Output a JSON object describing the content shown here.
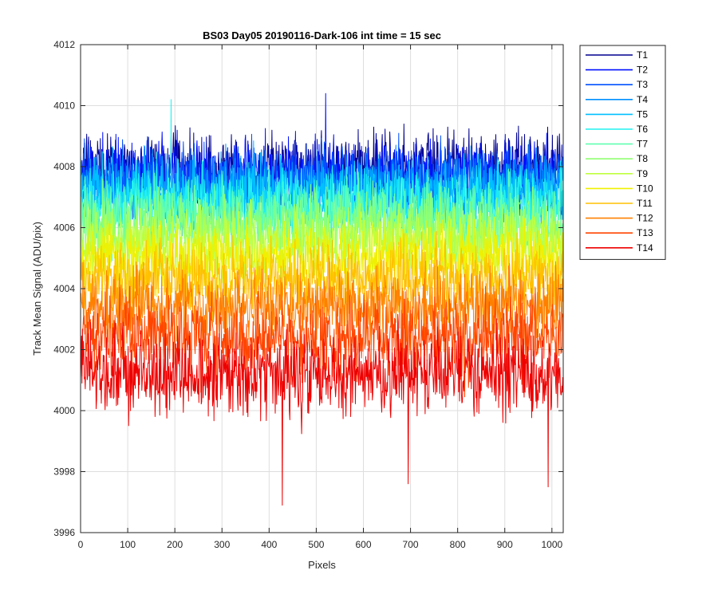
{
  "chart_data": {
    "type": "line",
    "title": "BS03 Day05 20190116-Dark-106 int time = 15 sec",
    "xlabel": "Pixels",
    "ylabel": "Track Mean Signal (ADU/pix)",
    "xlim": [
      0,
      1024
    ],
    "ylim": [
      3996,
      4012
    ],
    "xticks": [
      0,
      100,
      200,
      300,
      400,
      500,
      600,
      700,
      800,
      900,
      1000
    ],
    "yticks": [
      3996,
      3998,
      4000,
      4002,
      4004,
      4006,
      4008,
      4010,
      4012
    ],
    "grid": true,
    "legend_position": "outside-top-right",
    "n_points": 1024,
    "series": [
      {
        "name": "T1",
        "color": "#00008f",
        "mean": 4007.9,
        "spread": 0.95
      },
      {
        "name": "T2",
        "color": "#0010ff",
        "mean": 4007.7,
        "spread": 0.95
      },
      {
        "name": "T3",
        "color": "#0050ff",
        "mean": 4007.5,
        "spread": 0.95
      },
      {
        "name": "T4",
        "color": "#0090ff",
        "mean": 4007.2,
        "spread": 0.95
      },
      {
        "name": "T5",
        "color": "#00c0ff",
        "mean": 4007.0,
        "spread": 0.95
      },
      {
        "name": "T6",
        "color": "#20f0f0",
        "mean": 4006.8,
        "spread": 0.95
      },
      {
        "name": "T7",
        "color": "#60ffb0",
        "mean": 4006.4,
        "spread": 0.95
      },
      {
        "name": "T8",
        "color": "#90ff70",
        "mean": 4006.0,
        "spread": 0.95
      },
      {
        "name": "T9",
        "color": "#c0ff40",
        "mean": 4005.5,
        "spread": 0.95
      },
      {
        "name": "T10",
        "color": "#f0f000",
        "mean": 4005.0,
        "spread": 0.95
      },
      {
        "name": "T11",
        "color": "#ffc000",
        "mean": 4004.3,
        "spread": 0.95
      },
      {
        "name": "T12",
        "color": "#ff8000",
        "mean": 4003.4,
        "spread": 0.95
      },
      {
        "name": "T13",
        "color": "#ff4500",
        "mean": 4002.4,
        "spread": 1.0
      },
      {
        "name": "T14",
        "color": "#ee0000",
        "mean": 4001.2,
        "spread": 1.05
      }
    ],
    "notable_points": [
      {
        "series": "T2",
        "x": 520,
        "y": 4010.4
      },
      {
        "series": "T6",
        "x": 192,
        "y": 4010.2
      },
      {
        "series": "T14",
        "x": 428,
        "y": 3996.9
      },
      {
        "series": "T14",
        "x": 695,
        "y": 3997.6
      },
      {
        "series": "T14",
        "x": 992,
        "y": 3997.5
      }
    ]
  }
}
